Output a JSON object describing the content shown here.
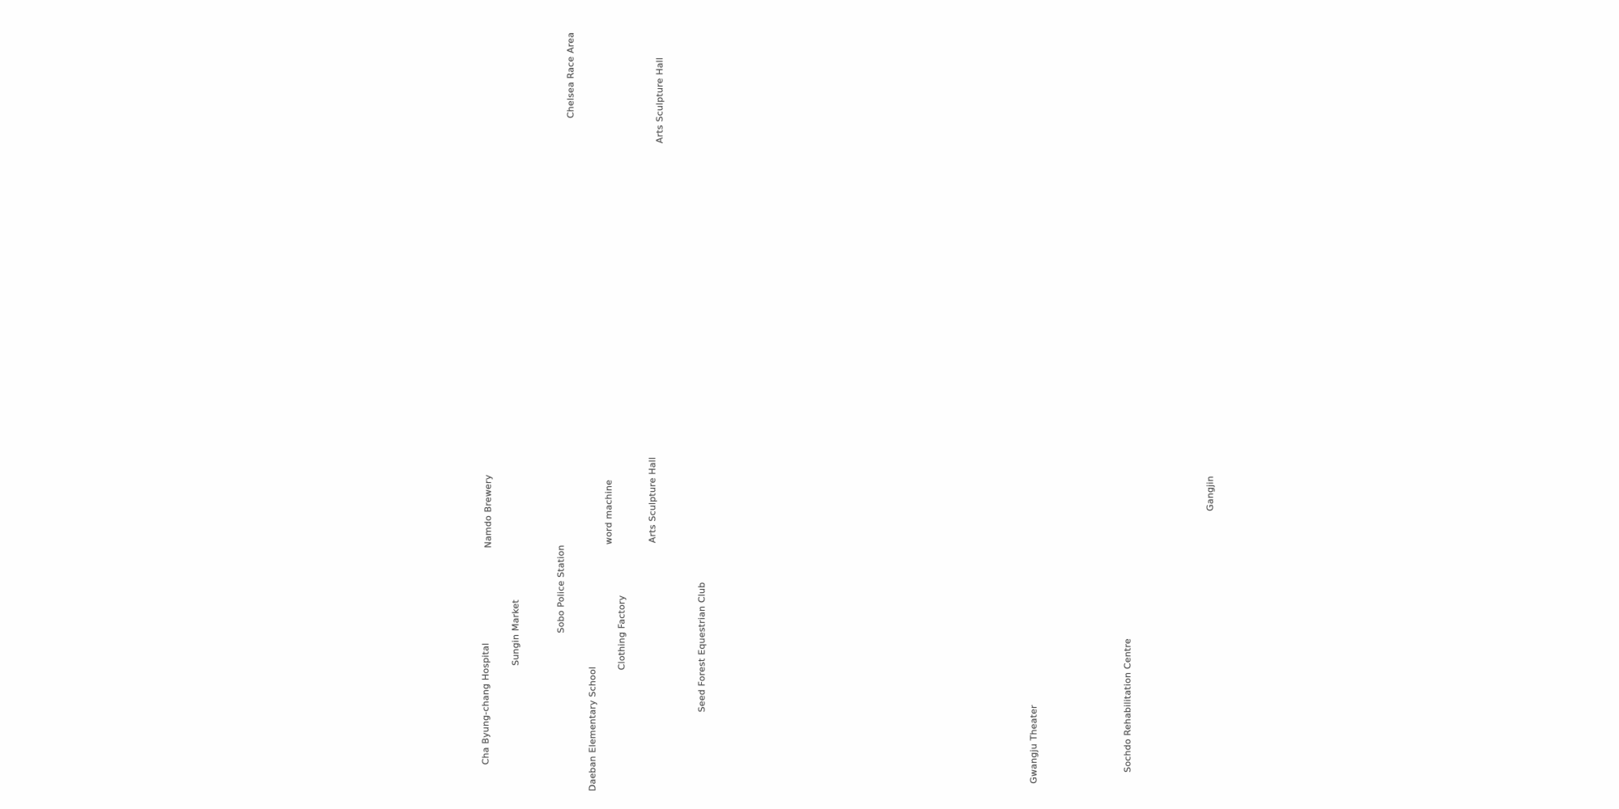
{
  "map": {
    "labels": [
      {
        "text": "Chelsea Race Area"
      },
      {
        "text": "Arts Sculpture Hall"
      },
      {
        "text": "Namdo Brewery"
      },
      {
        "text": "word machine"
      },
      {
        "text": "Arts Sculpture Hall"
      },
      {
        "text": "Sobo Police Station"
      },
      {
        "text": "Sungin Market"
      },
      {
        "text": "Cha Byung-chang Hospital"
      },
      {
        "text": "Daeban Elementary School"
      },
      {
        "text": "Clothing Factory"
      },
      {
        "text": "Seed Forest Equestrian Club"
      },
      {
        "text": "Gangjin"
      },
      {
        "text": "Gwangju Theater"
      },
      {
        "text": "Sochdo Rehabilitation Centre"
      }
    ]
  }
}
